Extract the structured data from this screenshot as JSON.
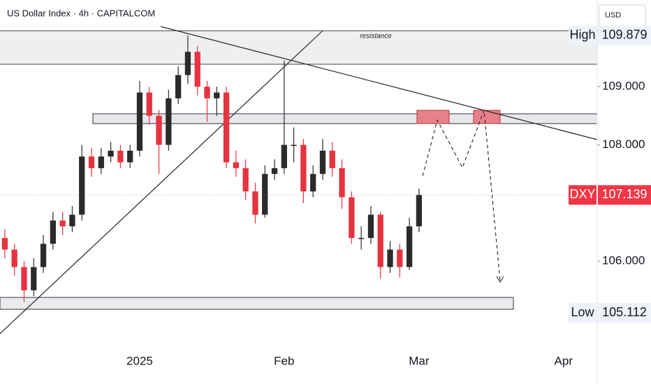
{
  "chart_data": {
    "type": "candlestick",
    "title": "US Dollar Index · 4h · CAPITALCOM",
    "currency": "USD",
    "annotation": "resistance",
    "categories": [
      null,
      null,
      null,
      null,
      null,
      null,
      null,
      null,
      null,
      null,
      null,
      null,
      null,
      null,
      "2025",
      null,
      null,
      null,
      null,
      null,
      null,
      null,
      null,
      null,
      null,
      null,
      null,
      null,
      null,
      "Feb",
      null,
      null,
      null,
      null,
      null,
      null,
      null,
      null,
      null,
      null,
      null,
      null,
      null,
      "Mar",
      null,
      null,
      null,
      null,
      null,
      null,
      null,
      null,
      null,
      null,
      null,
      null,
      null,
      null,
      "Apr",
      null,
      null,
      null
    ],
    "open": [
      106.4,
      106.2,
      105.9,
      105.5,
      105.9,
      106.3,
      106.7,
      106.6,
      106.8,
      107.8,
      107.6,
      107.8,
      107.9,
      107.7,
      107.9,
      108.9,
      108.5,
      108.0,
      108.8,
      109.2,
      109.6,
      109.0,
      108.8,
      108.9,
      107.7,
      107.6,
      107.2,
      106.8,
      107.5,
      107.6,
      108.0,
      108.0,
      107.2,
      107.5,
      107.9,
      107.6,
      107.1,
      106.4,
      106.4,
      106.8,
      105.9,
      106.2,
      105.9,
      106.6,
      null,
      null,
      null,
      null,
      null,
      null,
      null,
      null,
      null,
      null,
      null,
      null,
      null,
      null,
      null,
      null,
      null,
      null
    ],
    "high": [
      106.55,
      106.3,
      106.0,
      106.05,
      106.45,
      106.85,
      106.85,
      106.95,
      108.0,
      107.95,
      107.95,
      108.05,
      108.0,
      108.0,
      109.1,
      109.0,
      108.6,
      108.95,
      109.35,
      109.88,
      109.7,
      109.1,
      109.0,
      109.0,
      107.9,
      107.75,
      107.35,
      107.65,
      107.75,
      109.45,
      108.3,
      108.1,
      107.65,
      108.1,
      108.05,
      107.75,
      107.2,
      106.6,
      106.95,
      106.85,
      106.35,
      106.3,
      106.75,
      107.25,
      null,
      null,
      null,
      null,
      null,
      null,
      null,
      null,
      null,
      null,
      null,
      null,
      null,
      null,
      null,
      null,
      null,
      null
    ],
    "low": [
      106.05,
      105.75,
      105.3,
      105.4,
      105.8,
      106.2,
      106.45,
      106.5,
      106.7,
      107.45,
      107.5,
      107.7,
      107.6,
      107.6,
      107.8,
      108.35,
      107.5,
      107.9,
      108.7,
      109.05,
      108.85,
      108.4,
      108.5,
      107.6,
      107.45,
      107.05,
      106.65,
      106.75,
      107.4,
      107.5,
      107.7,
      107.0,
      107.1,
      107.4,
      107.45,
      106.9,
      106.3,
      106.2,
      106.3,
      105.7,
      105.8,
      105.72,
      105.85,
      106.5,
      null,
      null,
      null,
      null,
      null,
      null,
      null,
      null,
      null,
      null,
      null,
      null,
      null,
      null,
      null,
      null,
      null,
      null
    ],
    "close": [
      106.2,
      105.9,
      105.5,
      105.9,
      106.3,
      106.7,
      106.6,
      106.8,
      107.8,
      107.6,
      107.8,
      107.9,
      107.7,
      107.9,
      108.9,
      108.5,
      108.0,
      108.8,
      109.2,
      109.6,
      109.0,
      108.8,
      108.9,
      107.7,
      107.6,
      107.2,
      106.8,
      107.5,
      107.6,
      108.0,
      108.0,
      107.2,
      107.5,
      107.9,
      107.6,
      107.1,
      106.4,
      106.4,
      106.8,
      105.9,
      106.2,
      105.9,
      106.6,
      107.139,
      null,
      null,
      null,
      null,
      null,
      null,
      null,
      null,
      null,
      null,
      null,
      null,
      null,
      null,
      null,
      null,
      null,
      null
    ],
    "up_color": "#2b2b2b",
    "down_color": "#e5333f",
    "ylim": [
      104.37,
      110.49
    ],
    "yticks": [
      {
        "value": 106,
        "label": "106.000"
      },
      {
        "value": 108,
        "label": "108.000"
      },
      {
        "value": 109,
        "label": "109.000"
      }
    ],
    "high_marker": {
      "label": "High",
      "value": 109.879
    },
    "low_marker": {
      "label": "Low",
      "value": 105.112
    },
    "last_marker": {
      "label": "DXY",
      "value": 107.139
    }
  }
}
